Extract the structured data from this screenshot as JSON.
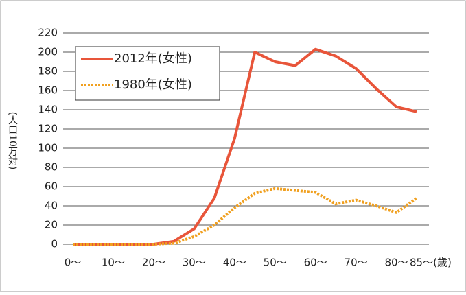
{
  "chart_data": {
    "type": "line",
    "y_label": "(人口10万対)",
    "categories": [
      "0～",
      null,
      "10～",
      null,
      "20～",
      null,
      "30～",
      null,
      "40～",
      null,
      "50～",
      null,
      "60～",
      null,
      "70～",
      null,
      "80～",
      "85～(歳)"
    ],
    "series": [
      {
        "name": "2012年(女性)",
        "color": "#e8553a",
        "dash": false,
        "values": [
          0,
          0,
          0,
          0,
          0,
          3,
          16,
          48,
          110,
          200,
          190,
          186,
          203,
          196,
          183,
          162,
          143,
          138
        ]
      },
      {
        "name": "1980年(女性)",
        "color": "#f0a020",
        "dash": true,
        "values": [
          0,
          0,
          0,
          0,
          0,
          1,
          8,
          20,
          38,
          53,
          58,
          56,
          54,
          42,
          46,
          40,
          33,
          48
        ]
      }
    ],
    "ylim": [
      0,
      220
    ],
    "yticks": [
      0,
      20,
      40,
      60,
      80,
      100,
      120,
      140,
      160,
      180,
      200,
      220
    ],
    "grid": true
  }
}
